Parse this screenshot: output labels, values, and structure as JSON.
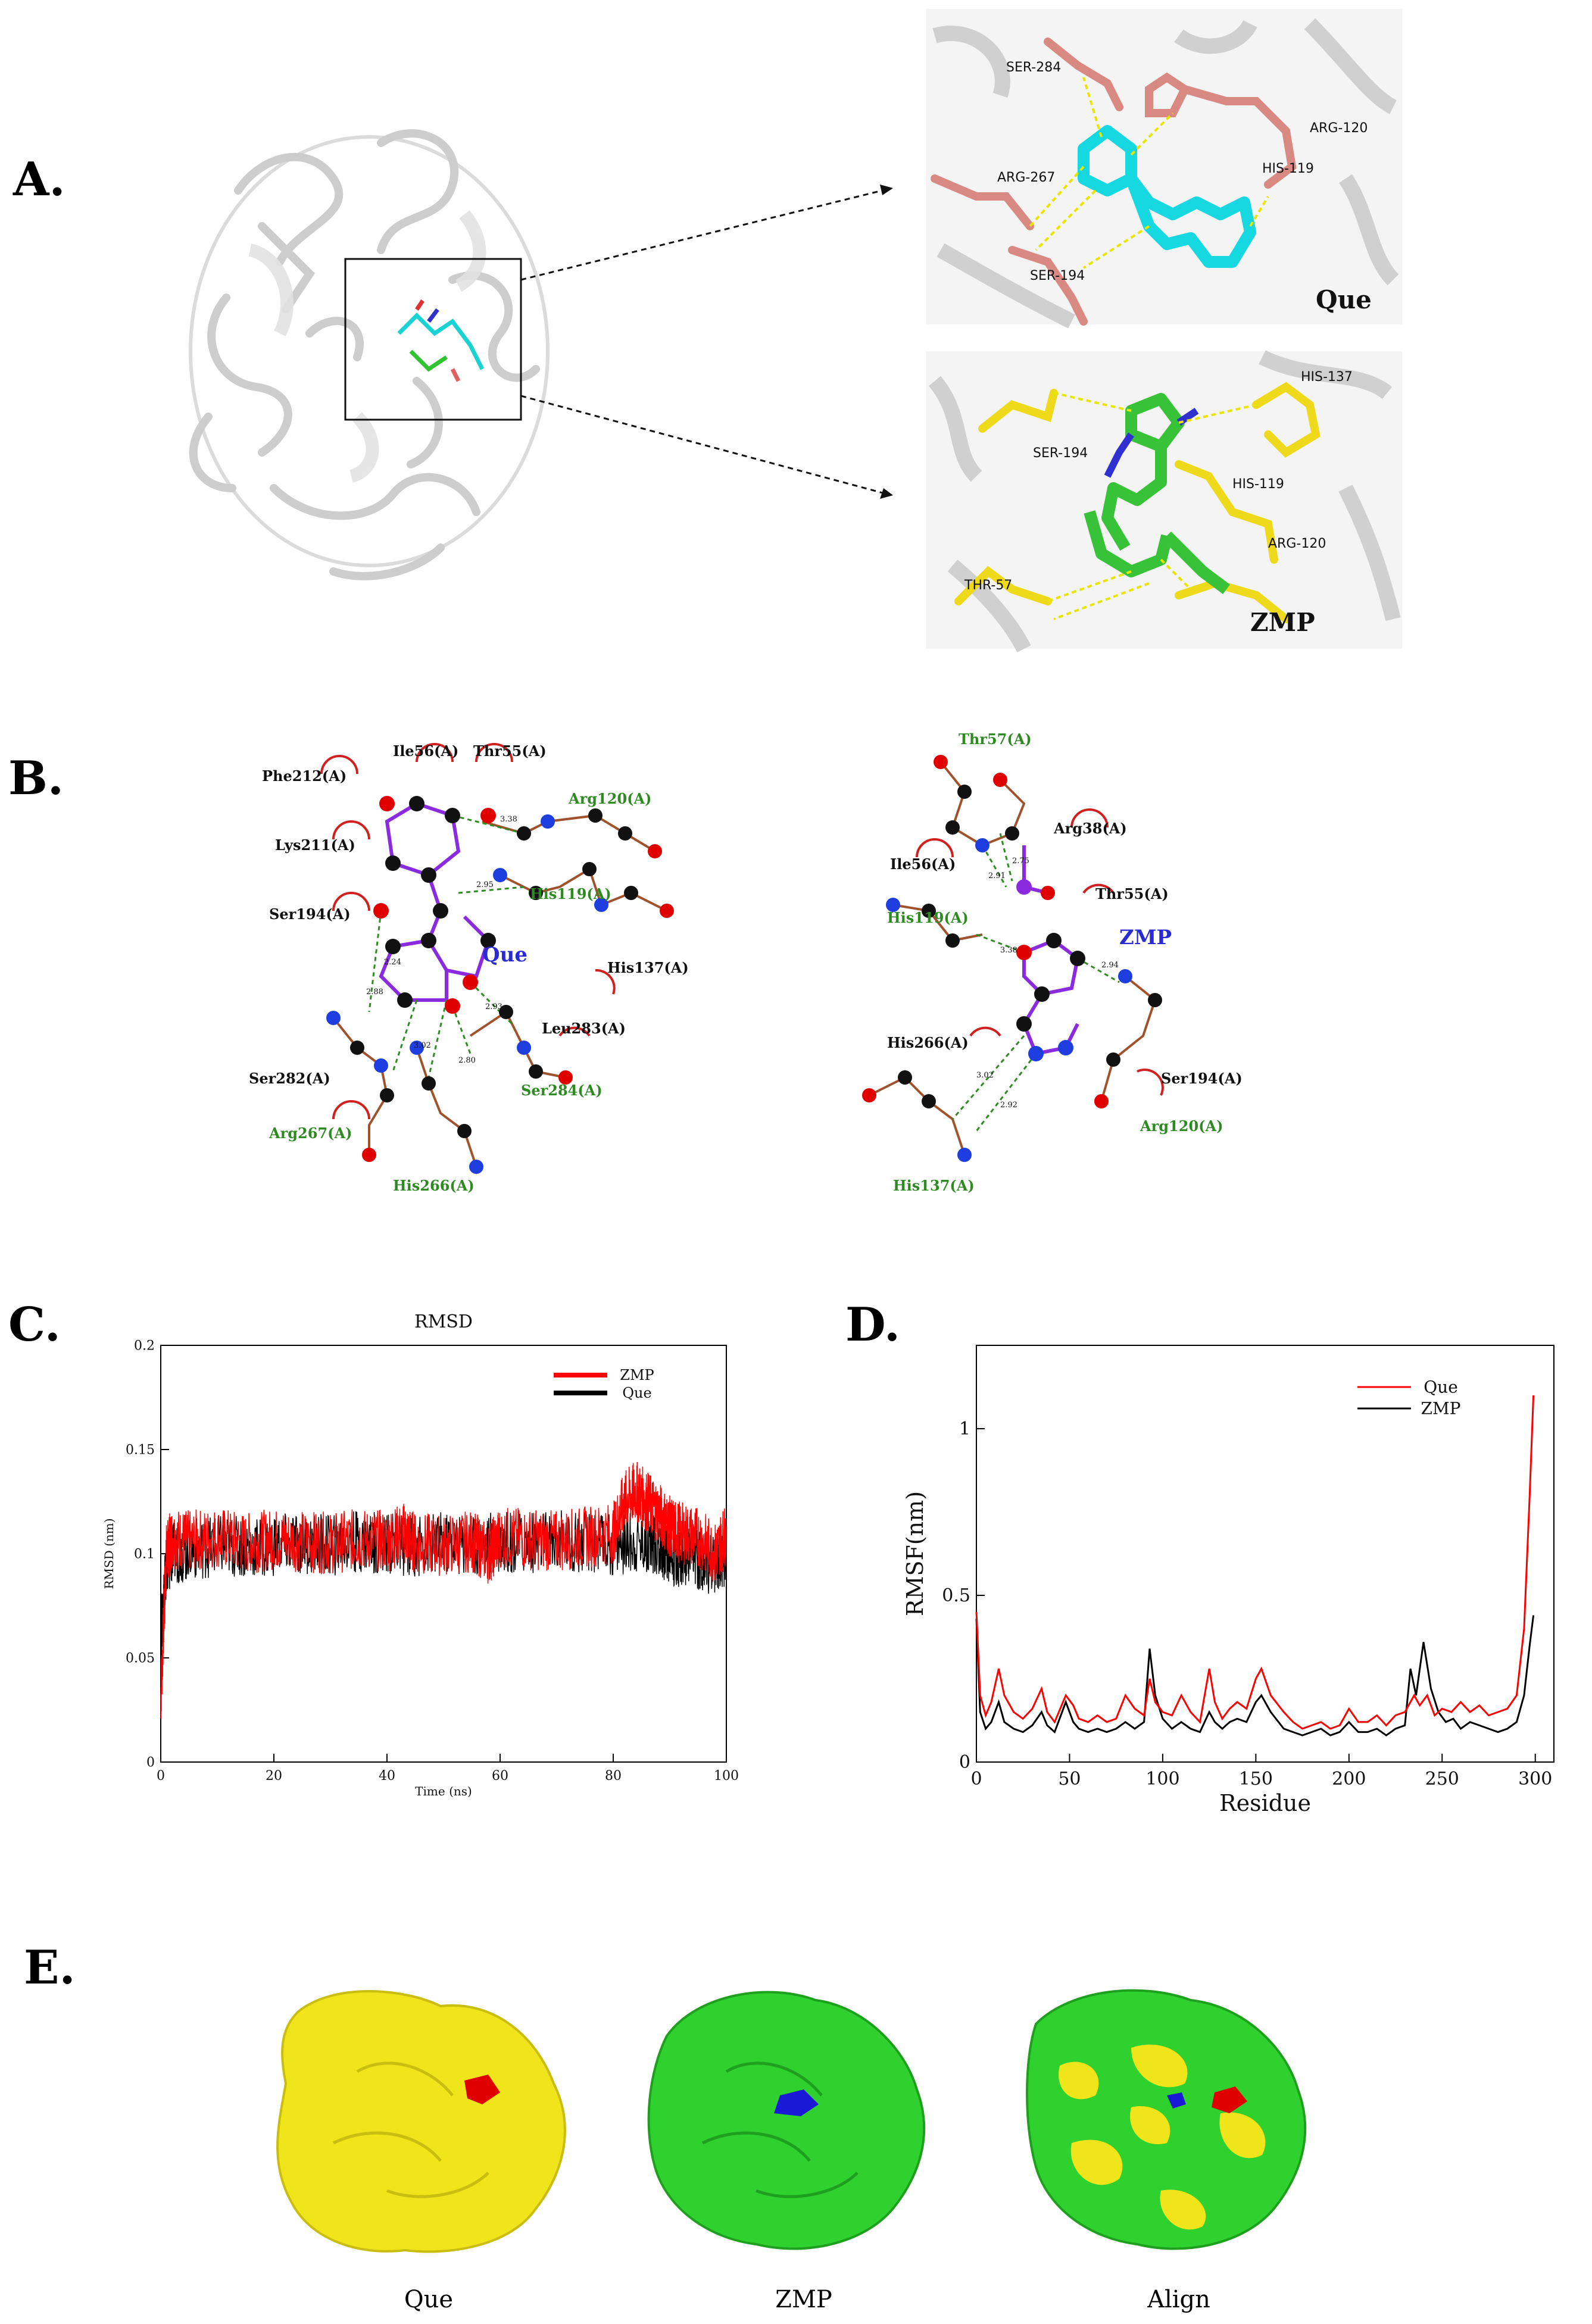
{
  "panels": {
    "a": "A.",
    "b": "B.",
    "c": "C.",
    "d": "D.",
    "e": "E."
  },
  "panelA": {
    "que_residues": [
      "SER-284",
      "ARG-267",
      "HIS-119",
      "ARG-120",
      "SER-194"
    ],
    "que_label": "Que",
    "zmp_residues": [
      "HIS-137",
      "SER-194",
      "HIS-119",
      "ARG-120",
      "THR-57"
    ],
    "zmp_label": "ZMP"
  },
  "panelB": {
    "que": {
      "ligand": "Que",
      "hydrophobic": [
        "Phe212(A)",
        "Ile56(A)",
        "Thr55(A)",
        "Lys211(A)",
        "Ser194(A)",
        "His137(A)",
        "Leu283(A)",
        "Ser282(A)"
      ],
      "hbond": [
        "Arg120(A)",
        "His119(A)",
        "Ser284(A)",
        "Arg267(A)",
        "His266(A)"
      ],
      "distances": [
        "3.38",
        "2.95",
        "2.88",
        "2.24",
        "3.02",
        "2.80",
        "2.93"
      ]
    },
    "zmp": {
      "ligand": "ZMP",
      "hydrophobic": [
        "Arg38(A)",
        "Ile56(A)",
        "Thr55(A)",
        "His266(A)",
        "Ser194(A)"
      ],
      "hbond": [
        "Thr57(A)",
        "His119(A)",
        "Arg120(A)",
        "His137(A)"
      ],
      "distances": [
        "2.75",
        "2.91",
        "3.38",
        "2.94",
        "3.02",
        "2.92"
      ]
    }
  },
  "chart_data": [
    {
      "type": "line",
      "title": "RMSD",
      "xlabel": "Time (ns)",
      "ylabel": "RMSD (nm)",
      "xlim": [
        0,
        100
      ],
      "ylim": [
        0,
        0.2
      ],
      "xticks": [
        "0",
        "20",
        "40",
        "60",
        "80",
        "100"
      ],
      "yticks": [
        "0",
        "0.05",
        "0.1",
        "0.15",
        "0.2"
      ],
      "legend": "top-right",
      "series": [
        {
          "name": "ZMP",
          "color": "#ff0000",
          "x": [
            0,
            1,
            2,
            5,
            10,
            15,
            20,
            25,
            30,
            35,
            40,
            43,
            45,
            50,
            55,
            58,
            60,
            65,
            70,
            75,
            80,
            82,
            84,
            86,
            88,
            90,
            92,
            95,
            98,
            100
          ],
          "y": [
            0.03,
            0.1,
            0.108,
            0.106,
            0.108,
            0.105,
            0.107,
            0.106,
            0.105,
            0.107,
            0.106,
            0.11,
            0.105,
            0.104,
            0.106,
            0.1,
            0.108,
            0.107,
            0.106,
            0.108,
            0.11,
            0.125,
            0.13,
            0.125,
            0.12,
            0.113,
            0.11,
            0.108,
            0.1,
            0.11
          ]
        },
        {
          "name": "Que",
          "color": "#000000",
          "x": [
            0,
            1,
            2,
            5,
            10,
            15,
            20,
            25,
            30,
            35,
            40,
            45,
            50,
            55,
            60,
            65,
            70,
            75,
            80,
            85,
            88,
            90,
            92,
            95,
            98,
            100
          ],
          "y": [
            0.06,
            0.095,
            0.1,
            0.102,
            0.104,
            0.103,
            0.104,
            0.105,
            0.104,
            0.106,
            0.105,
            0.104,
            0.105,
            0.104,
            0.106,
            0.105,
            0.106,
            0.105,
            0.104,
            0.106,
            0.104,
            0.1,
            0.098,
            0.097,
            0.095,
            0.1
          ]
        }
      ]
    },
    {
      "type": "line",
      "title": "",
      "xlabel": "Residue",
      "ylabel": "RMSF(nm)",
      "xlim": [
        0,
        310
      ],
      "ylim": [
        0,
        1.25
      ],
      "xticks": [
        "0",
        "50",
        "100",
        "150",
        "200",
        "250",
        "300"
      ],
      "yticks": [
        "0",
        "0.5",
        "1"
      ],
      "legend": "top-right",
      "series": [
        {
          "name": "Que",
          "color": "#ff0000",
          "x": [
            0,
            2,
            5,
            8,
            12,
            15,
            20,
            25,
            30,
            35,
            38,
            42,
            48,
            52,
            55,
            60,
            65,
            70,
            75,
            80,
            85,
            90,
            93,
            96,
            100,
            105,
            110,
            115,
            120,
            125,
            128,
            132,
            136,
            140,
            145,
            150,
            153,
            158,
            165,
            170,
            175,
            180,
            185,
            190,
            195,
            200,
            205,
            210,
            215,
            220,
            225,
            230,
            235,
            238,
            242,
            246,
            250,
            255,
            260,
            265,
            270,
            275,
            280,
            285,
            290,
            294,
            297,
            299
          ],
          "y": [
            0.45,
            0.2,
            0.14,
            0.18,
            0.28,
            0.2,
            0.15,
            0.13,
            0.16,
            0.22,
            0.15,
            0.12,
            0.2,
            0.17,
            0.13,
            0.12,
            0.14,
            0.12,
            0.13,
            0.2,
            0.16,
            0.14,
            0.25,
            0.18,
            0.15,
            0.14,
            0.2,
            0.15,
            0.12,
            0.28,
            0.18,
            0.13,
            0.16,
            0.18,
            0.16,
            0.25,
            0.28,
            0.2,
            0.15,
            0.12,
            0.1,
            0.11,
            0.12,
            0.1,
            0.11,
            0.16,
            0.12,
            0.12,
            0.14,
            0.11,
            0.14,
            0.15,
            0.2,
            0.17,
            0.2,
            0.14,
            0.16,
            0.15,
            0.18,
            0.15,
            0.17,
            0.14,
            0.15,
            0.16,
            0.2,
            0.4,
            0.8,
            1.1
          ]
        },
        {
          "name": "ZMP",
          "color": "#000000",
          "x": [
            0,
            2,
            5,
            8,
            12,
            15,
            20,
            25,
            30,
            35,
            38,
            42,
            48,
            52,
            55,
            60,
            65,
            70,
            75,
            80,
            85,
            90,
            93,
            96,
            100,
            105,
            110,
            115,
            120,
            125,
            128,
            132,
            136,
            140,
            145,
            150,
            153,
            158,
            165,
            170,
            175,
            180,
            185,
            190,
            195,
            200,
            205,
            210,
            215,
            220,
            225,
            230,
            233,
            236,
            240,
            244,
            248,
            252,
            256,
            260,
            265,
            270,
            275,
            280,
            285,
            290,
            294,
            297,
            299
          ],
          "y": [
            0.43,
            0.15,
            0.1,
            0.12,
            0.18,
            0.12,
            0.1,
            0.09,
            0.11,
            0.15,
            0.11,
            0.09,
            0.18,
            0.12,
            0.1,
            0.09,
            0.1,
            0.09,
            0.1,
            0.12,
            0.1,
            0.12,
            0.34,
            0.2,
            0.13,
            0.1,
            0.12,
            0.1,
            0.09,
            0.15,
            0.12,
            0.1,
            0.12,
            0.13,
            0.12,
            0.18,
            0.2,
            0.15,
            0.1,
            0.09,
            0.08,
            0.09,
            0.1,
            0.08,
            0.09,
            0.12,
            0.09,
            0.09,
            0.1,
            0.08,
            0.1,
            0.11,
            0.28,
            0.2,
            0.36,
            0.22,
            0.15,
            0.12,
            0.13,
            0.1,
            0.12,
            0.11,
            0.1,
            0.09,
            0.1,
            0.12,
            0.2,
            0.35,
            0.44
          ]
        }
      ]
    }
  ],
  "panelE": {
    "captions": [
      "Que",
      "ZMP",
      "Align"
    ],
    "colors": {
      "que_surface": "#f0e41a",
      "zmp_surface": "#2fd12f",
      "que_ligand": "#e00000",
      "zmp_ligand": "#1a1ad6"
    }
  }
}
